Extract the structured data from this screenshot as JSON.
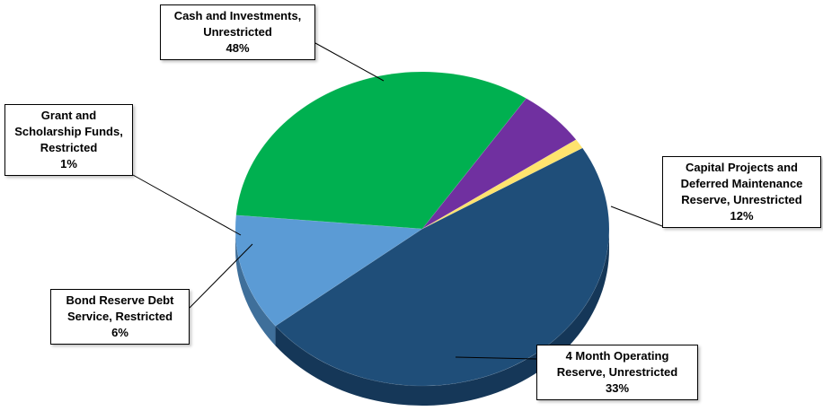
{
  "chart_data": {
    "type": "pie",
    "style": "3d",
    "categories": [
      "Cash and Investments, Unrestricted",
      "Capital Projects and Deferred Maintenance Reserve, Unrestricted",
      "4 Month Operating Reserve, Unrestricted",
      "Bond Reserve Debt Service, Restricted",
      "Grant and Scholarship Funds, Restricted"
    ],
    "values": [
      48,
      12,
      33,
      6,
      1
    ],
    "colors": [
      "#1F4E79",
      "#5B9BD5",
      "#00B050",
      "#7030A0",
      "#FFE36E"
    ],
    "side_colors": [
      "#153758",
      "#3F6F9A",
      "#007A35",
      "#4B1F6B",
      "#B8A24A"
    ],
    "legend": "none",
    "labels": [
      {
        "lines": [
          "Cash and Investments,",
          "Unrestricted",
          "48%"
        ]
      },
      {
        "lines": [
          "Capital Projects and",
          "Deferred Maintenance",
          "Reserve, Unrestricted",
          "12%"
        ]
      },
      {
        "lines": [
          "4 Month Operating",
          "Reserve, Unrestricted",
          "33%"
        ]
      },
      {
        "lines": [
          "Bond Reserve Debt",
          "Service, Restricted",
          "6%"
        ]
      },
      {
        "lines": [
          "Grant and",
          "Scholarship Funds,",
          "Restricted",
          "1%"
        ]
      }
    ]
  }
}
